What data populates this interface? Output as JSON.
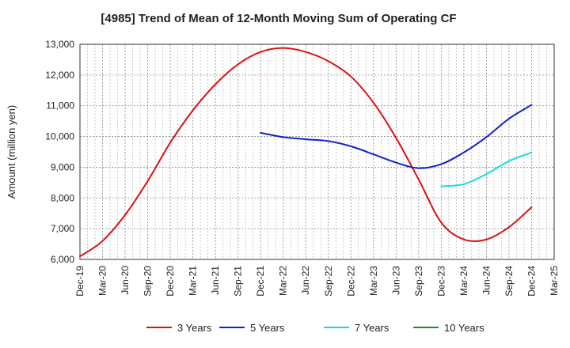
{
  "chart_data": {
    "type": "line",
    "title": "[4985]  Trend of Mean of 12-Month Moving Sum of Operating CF",
    "xlabel": "",
    "ylabel": "Amount (million yen)",
    "ylim": [
      6000,
      13000
    ],
    "yticks": [
      6000,
      7000,
      8000,
      9000,
      10000,
      11000,
      12000,
      13000
    ],
    "ytick_labels": [
      "6,000",
      "7,000",
      "8,000",
      "9,000",
      "10,000",
      "11,000",
      "12,000",
      "13,000"
    ],
    "x_categories": [
      "Dec-19",
      "Mar-20",
      "Jun-20",
      "Sep-20",
      "Dec-20",
      "Mar-21",
      "Jun-21",
      "Sep-21",
      "Dec-21",
      "Mar-22",
      "Jun-22",
      "Sep-22",
      "Dec-22",
      "Mar-23",
      "Jun-23",
      "Sep-23",
      "Dec-23",
      "Mar-24",
      "Jun-24",
      "Sep-24",
      "Dec-24",
      "Mar-25"
    ],
    "grid": true,
    "legend_position": "bottom",
    "series": [
      {
        "name": "3 Years",
        "color": "#dd1111",
        "points": [
          [
            0,
            6100
          ],
          [
            1,
            6600
          ],
          [
            2,
            7450
          ],
          [
            3,
            8550
          ],
          [
            4,
            9800
          ],
          [
            5,
            10850
          ],
          [
            6,
            11700
          ],
          [
            7,
            12350
          ],
          [
            8,
            12750
          ],
          [
            9,
            12880
          ],
          [
            10,
            12750
          ],
          [
            11,
            12450
          ],
          [
            12,
            11950
          ],
          [
            13,
            11100
          ],
          [
            14,
            9950
          ],
          [
            15,
            8600
          ],
          [
            16,
            7200
          ],
          [
            17,
            6650
          ],
          [
            18,
            6650
          ],
          [
            19,
            7050
          ],
          [
            20,
            7700
          ]
        ]
      },
      {
        "name": "5 Years",
        "color": "#1122cc",
        "points": [
          [
            8,
            10120
          ],
          [
            9,
            9980
          ],
          [
            10,
            9910
          ],
          [
            11,
            9850
          ],
          [
            12,
            9680
          ],
          [
            13,
            9420
          ],
          [
            14,
            9150
          ],
          [
            15,
            8970
          ],
          [
            16,
            9100
          ],
          [
            17,
            9480
          ],
          [
            18,
            9980
          ],
          [
            19,
            10580
          ],
          [
            20,
            11030
          ]
        ]
      },
      {
        "name": "7 Years",
        "color": "#11dddd",
        "points": [
          [
            16,
            8380
          ],
          [
            17,
            8450
          ],
          [
            18,
            8780
          ],
          [
            19,
            9200
          ],
          [
            20,
            9480
          ]
        ]
      },
      {
        "name": "10 Years",
        "color": "#228822",
        "points": []
      }
    ]
  }
}
